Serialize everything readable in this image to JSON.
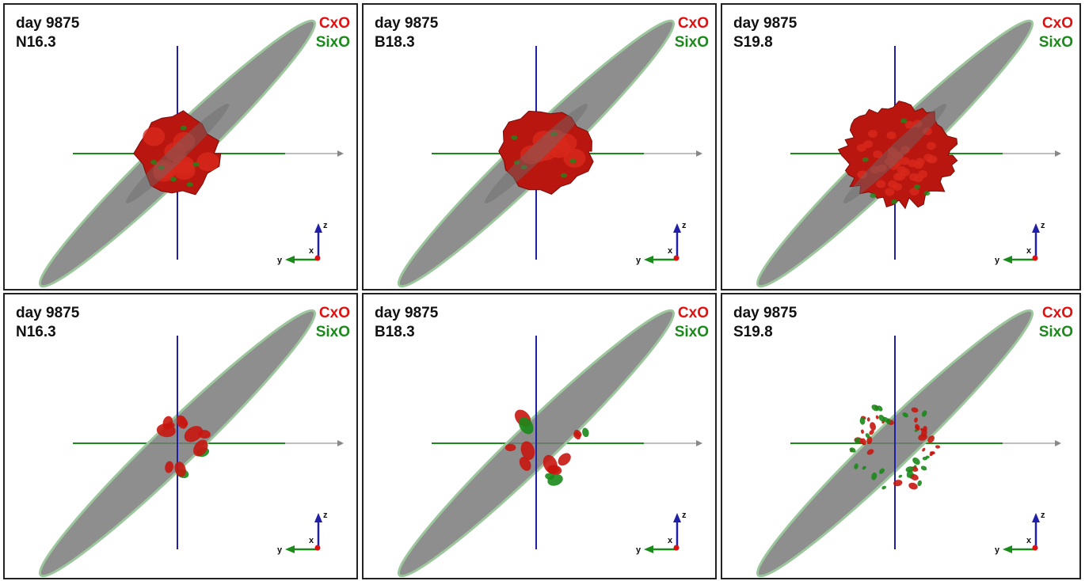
{
  "colors": {
    "cxo": "#e01010",
    "sixo": "#1a8a1a",
    "z_axis": "#1f1fa8",
    "y_axis": "#1a8a1a",
    "x_axis_line": "#aaaaaa",
    "ring_fill": "#7a7a7a",
    "ring_edge": "#9cc79c"
  },
  "legend": {
    "cxo": "CxO",
    "sixo": "SixO"
  },
  "axis_labels": {
    "x": "x",
    "y": "y",
    "z": "z"
  },
  "panels": [
    {
      "day": "day 9875",
      "model": "N16.3",
      "row": "top",
      "icon": "ejecta-isosurface-red-blob"
    },
    {
      "day": "day 9875",
      "model": "B18.3",
      "row": "top",
      "icon": "ejecta-isosurface-red-blob"
    },
    {
      "day": "day 9875",
      "model": "S19.8",
      "row": "top",
      "icon": "ejecta-isosurface-red-blob"
    },
    {
      "day": "day 9875",
      "model": "N16.3",
      "row": "bottom",
      "icon": "ejecta-clumps-red-green"
    },
    {
      "day": "day 9875",
      "model": "B18.3",
      "row": "bottom",
      "icon": "ejecta-clumps-red-green"
    },
    {
      "day": "day 9875",
      "model": "S19.8",
      "row": "bottom",
      "icon": "ejecta-clumps-red-green"
    }
  ]
}
